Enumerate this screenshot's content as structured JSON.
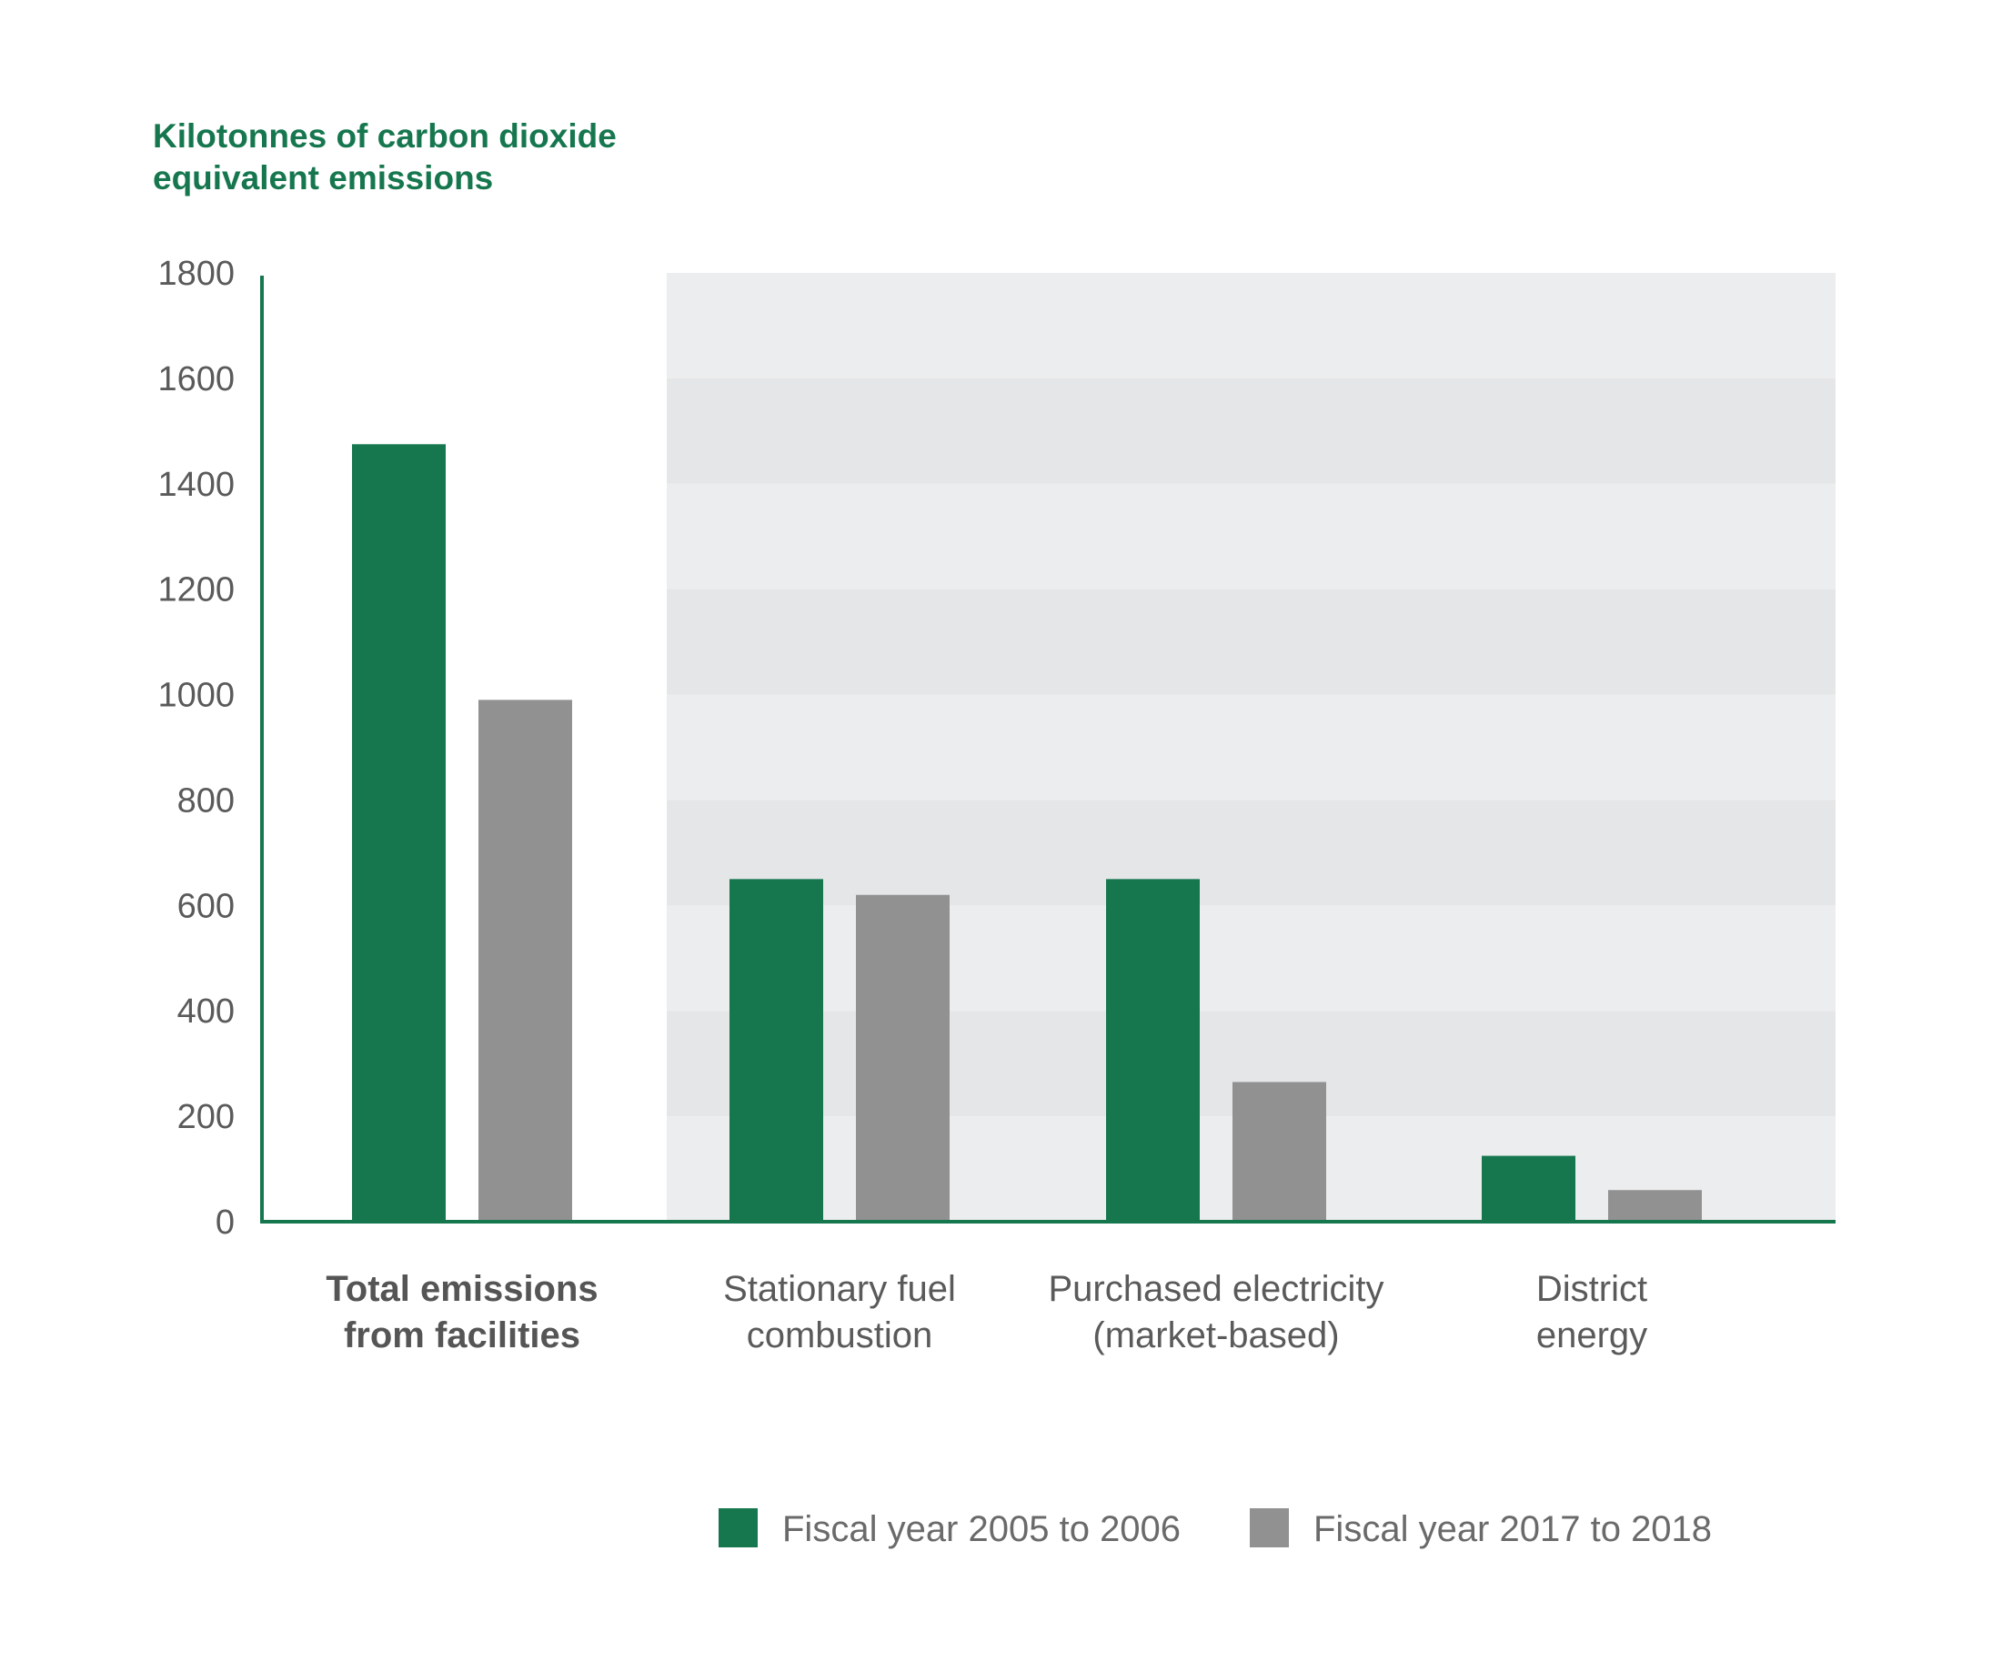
{
  "chart_data": {
    "type": "bar",
    "ylabel": "Kilotonnes of carbon dioxide equivalent emissions",
    "ylabel_lines": [
      "Kilotonnes of carbon dioxide",
      "equivalent emissions"
    ],
    "ylim": [
      0,
      1800
    ],
    "yticks": [
      0,
      200,
      400,
      600,
      800,
      1000,
      1200,
      1400,
      1600,
      1800
    ],
    "grid": "alternating horizontal bands behind the component categories",
    "legend": "bottom",
    "categories": [
      {
        "lines": [
          "Total emissions",
          "from facilities"
        ],
        "bold": true
      },
      {
        "lines": [
          "Stationary fuel",
          "combustion"
        ],
        "bold": false
      },
      {
        "lines": [
          "Purchased electricity",
          "(market-based)"
        ],
        "bold": false
      },
      {
        "lines": [
          "District",
          "energy"
        ],
        "bold": false
      }
    ],
    "series": [
      {
        "name": "Fiscal year 2005 to 2006",
        "color": "#16774f",
        "values": [
          1475,
          650,
          650,
          125
        ]
      },
      {
        "name": "Fiscal year 2017 to 2018",
        "color": "#919191",
        "values": [
          990,
          620,
          265,
          60
        ]
      }
    ],
    "colors": {
      "axis": "#16774f",
      "band_light": "#ecedee",
      "band_dark": "#e5e6e7"
    }
  }
}
